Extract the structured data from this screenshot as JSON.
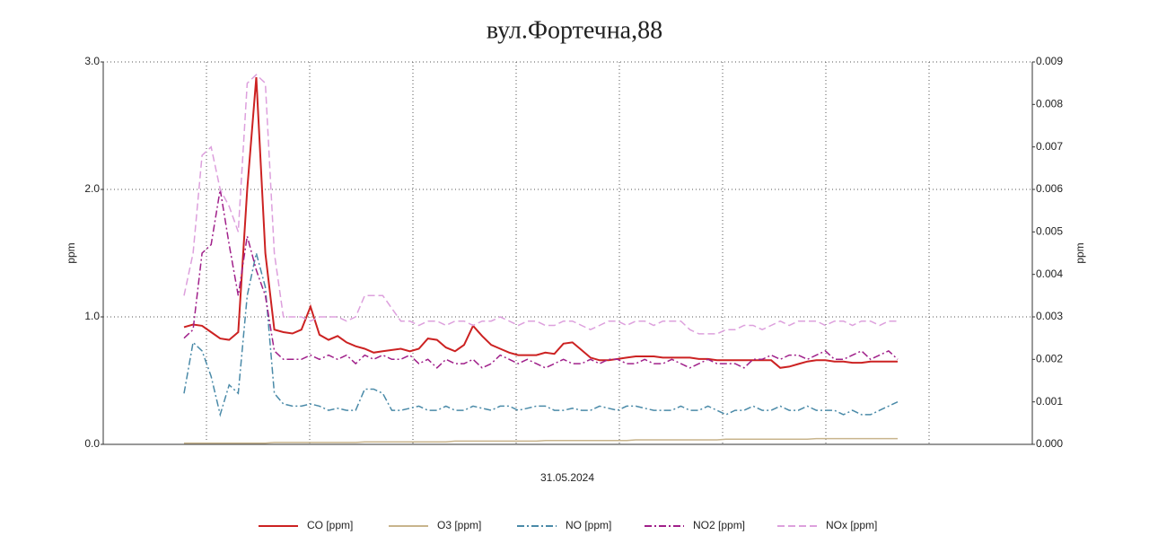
{
  "chart_data": {
    "type": "line",
    "title": "вул.Фортечна,88",
    "x_label": "31.05.2024",
    "y_label": "ppm",
    "y2_label": "ppm",
    "ylim": [
      0,
      3
    ],
    "yticks": [
      {
        "value": 0,
        "label": "0.0"
      },
      {
        "value": 1,
        "label": "1.0"
      },
      {
        "value": 2,
        "label": "2.0"
      },
      {
        "value": 3,
        "label": "3.0"
      }
    ],
    "y2lim": [
      0,
      0.009
    ],
    "y2ticks": [
      {
        "value": 0,
        "label": "0.000"
      },
      {
        "value": 0.001,
        "label": "0.001"
      },
      {
        "value": 0.002,
        "label": "0.002"
      },
      {
        "value": 0.003,
        "label": "0.003"
      },
      {
        "value": 0.004,
        "label": "0.004"
      },
      {
        "value": 0.005,
        "label": "0.005"
      },
      {
        "value": 0.006,
        "label": "0.006"
      },
      {
        "value": 0.007,
        "label": "0.007"
      },
      {
        "value": 0.008,
        "label": "0.008"
      },
      {
        "value": 0.009,
        "label": "0.009"
      }
    ],
    "grid": true,
    "legend": "bottom",
    "series": [
      {
        "name": "CO [ppm]",
        "color": "#cc2222",
        "dash": "solid",
        "values": [
          0.92,
          0.94,
          0.93,
          0.88,
          0.83,
          0.82,
          0.88,
          2.0,
          2.88,
          1.5,
          0.9,
          0.88,
          0.87,
          0.9,
          1.08,
          0.86,
          0.82,
          0.85,
          0.8,
          0.77,
          0.75,
          0.72,
          0.73,
          0.74,
          0.75,
          0.73,
          0.75,
          0.83,
          0.82,
          0.76,
          0.73,
          0.78,
          0.93,
          0.85,
          0.78,
          0.75,
          0.72,
          0.7,
          0.7,
          0.7,
          0.72,
          0.71,
          0.79,
          0.8,
          0.74,
          0.68,
          0.66,
          0.66,
          0.67,
          0.68,
          0.69,
          0.69,
          0.69,
          0.68,
          0.68,
          0.68,
          0.68,
          0.67,
          0.67,
          0.66,
          0.66,
          0.66,
          0.66,
          0.66,
          0.66,
          0.66,
          0.6,
          0.61,
          0.63,
          0.65,
          0.66,
          0.66,
          0.65,
          0.65,
          0.64,
          0.64,
          0.65,
          0.65,
          0.65,
          0.65
        ]
      },
      {
        "name": "O3 [ppm]",
        "color": "#c8b48c",
        "dash": "solid",
        "values": [
          0.01,
          0.01,
          0.01,
          0.01,
          0.01,
          0.01,
          0.01,
          0.01,
          0.01,
          0.01,
          0.015,
          0.015,
          0.015,
          0.015,
          0.015,
          0.015,
          0.015,
          0.015,
          0.015,
          0.015,
          0.02,
          0.02,
          0.02,
          0.02,
          0.02,
          0.02,
          0.02,
          0.02,
          0.02,
          0.02,
          0.025,
          0.025,
          0.025,
          0.025,
          0.025,
          0.025,
          0.025,
          0.025,
          0.025,
          0.025,
          0.03,
          0.03,
          0.03,
          0.03,
          0.03,
          0.03,
          0.03,
          0.03,
          0.03,
          0.03,
          0.035,
          0.035,
          0.035,
          0.035,
          0.035,
          0.035,
          0.035,
          0.035,
          0.035,
          0.035,
          0.04,
          0.04,
          0.04,
          0.04,
          0.04,
          0.04,
          0.04,
          0.04,
          0.04,
          0.04,
          0.045,
          0.045,
          0.045,
          0.045,
          0.045,
          0.045,
          0.045,
          0.045,
          0.045,
          0.045
        ]
      },
      {
        "name": "NO [ppm]",
        "color": "#4a8aa8",
        "dash": "dashdot",
        "axis": "y2",
        "values": [
          0.0012,
          0.0024,
          0.0022,
          0.0016,
          0.0007,
          0.0014,
          0.0012,
          0.0035,
          0.0045,
          0.0037,
          0.0012,
          0.00095,
          0.0009,
          0.0009,
          0.00095,
          0.0009,
          0.0008,
          0.00085,
          0.0008,
          0.0008,
          0.0013,
          0.0013,
          0.0012,
          0.0008,
          0.0008,
          0.00085,
          0.0009,
          0.0008,
          0.0008,
          0.0009,
          0.0008,
          0.0008,
          0.0009,
          0.00085,
          0.0008,
          0.0009,
          0.0009,
          0.0008,
          0.00085,
          0.0009,
          0.0009,
          0.0008,
          0.0008,
          0.00085,
          0.0008,
          0.0008,
          0.0009,
          0.00085,
          0.0008,
          0.0009,
          0.0009,
          0.00085,
          0.0008,
          0.0008,
          0.0008,
          0.0009,
          0.0008,
          0.0008,
          0.0009,
          0.0008,
          0.0007,
          0.0008,
          0.0008,
          0.0009,
          0.0008,
          0.0008,
          0.0009,
          0.0008,
          0.0008,
          0.0009,
          0.0008,
          0.0008,
          0.0008,
          0.0007,
          0.0008,
          0.0007,
          0.0007,
          0.0008,
          0.0009,
          0.001
        ]
      },
      {
        "name": "NO2 [ppm]",
        "color": "#a0208a",
        "dash": "dashdot",
        "axis": "y2",
        "values": [
          0.0025,
          0.0027,
          0.0045,
          0.0047,
          0.006,
          0.0047,
          0.0035,
          0.0049,
          0.0041,
          0.0035,
          0.0022,
          0.002,
          0.002,
          0.002,
          0.0021,
          0.002,
          0.0021,
          0.002,
          0.0021,
          0.0019,
          0.0021,
          0.002,
          0.0021,
          0.002,
          0.002,
          0.0021,
          0.0019,
          0.002,
          0.0018,
          0.002,
          0.0019,
          0.0019,
          0.002,
          0.0018,
          0.0019,
          0.0021,
          0.002,
          0.0019,
          0.002,
          0.0019,
          0.0018,
          0.0019,
          0.002,
          0.0019,
          0.0019,
          0.002,
          0.0019,
          0.002,
          0.002,
          0.0019,
          0.0019,
          0.002,
          0.0019,
          0.0019,
          0.002,
          0.0019,
          0.0018,
          0.0019,
          0.002,
          0.0019,
          0.0019,
          0.0019,
          0.0018,
          0.002,
          0.002,
          0.0021,
          0.002,
          0.0021,
          0.0021,
          0.002,
          0.0021,
          0.0022,
          0.002,
          0.002,
          0.0021,
          0.0022,
          0.002,
          0.0021,
          0.0022,
          0.002
        ]
      },
      {
        "name": "NOx [ppm]",
        "color": "#dda0dd",
        "dash": "dash",
        "axis": "y2",
        "values": [
          0.0035,
          0.0045,
          0.0068,
          0.007,
          0.006,
          0.0056,
          0.005,
          0.0085,
          0.0087,
          0.0085,
          0.0045,
          0.003,
          0.003,
          0.003,
          0.0029,
          0.003,
          0.003,
          0.003,
          0.0029,
          0.003,
          0.0035,
          0.0035,
          0.0035,
          0.0032,
          0.0029,
          0.0029,
          0.0028,
          0.0029,
          0.0029,
          0.0028,
          0.0029,
          0.0029,
          0.0028,
          0.0029,
          0.0029,
          0.003,
          0.0029,
          0.0028,
          0.0029,
          0.0029,
          0.0028,
          0.0028,
          0.0029,
          0.0029,
          0.0028,
          0.0027,
          0.0028,
          0.0029,
          0.0029,
          0.0028,
          0.0029,
          0.0029,
          0.0028,
          0.0029,
          0.0029,
          0.0029,
          0.0027,
          0.0026,
          0.0026,
          0.0026,
          0.0027,
          0.0027,
          0.0028,
          0.0028,
          0.0027,
          0.0028,
          0.0029,
          0.0028,
          0.0029,
          0.0029,
          0.0029,
          0.0028,
          0.0029,
          0.0029,
          0.0028,
          0.0029,
          0.0029,
          0.0028,
          0.0029,
          0.0029
        ]
      }
    ]
  }
}
